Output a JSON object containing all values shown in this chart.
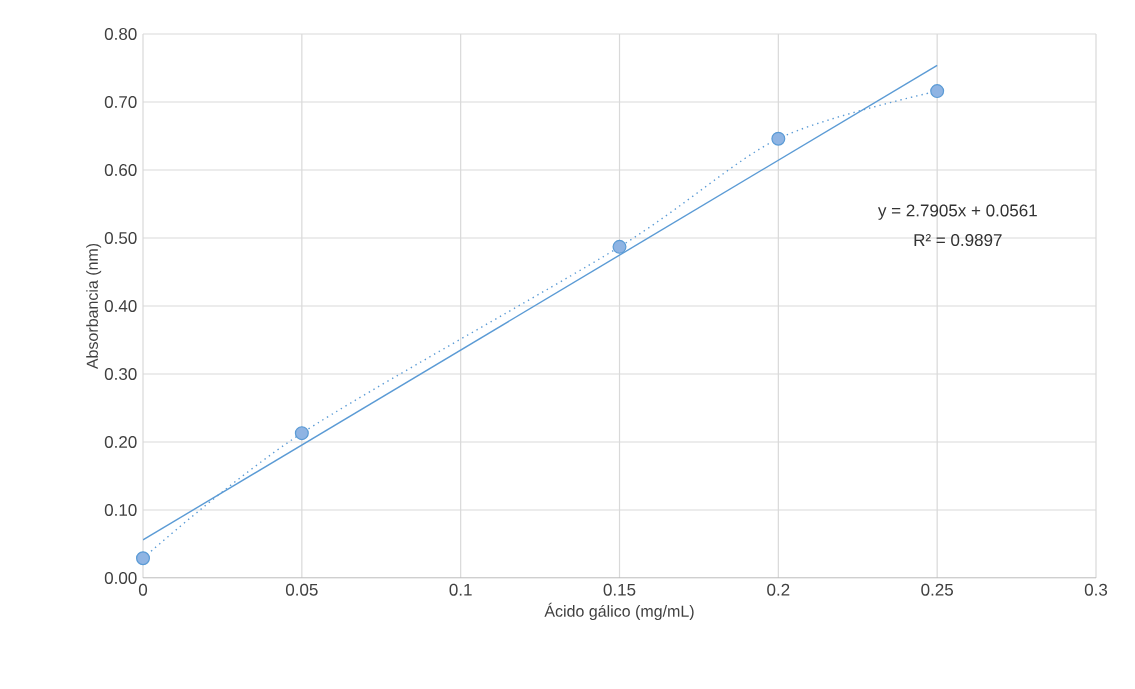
{
  "chart_data": {
    "type": "line",
    "xlabel": "Ácido gálico (mg/mL)",
    "ylabel": "Absorbancia (nm)",
    "x": [
      0,
      0.05,
      0.15,
      0.2,
      0.25
    ],
    "series": [
      {
        "color": "#5b9bd5",
        "marker": "circle",
        "line_style": "dotted",
        "values": [
          0.029,
          0.213,
          0.487,
          0.646,
          0.716
        ]
      },
      {
        "color": "#5b9bd5",
        "marker": "none",
        "line_style": "solid",
        "x": [
          0,
          0.25
        ],
        "values": [
          0.056,
          0.754
        ]
      }
    ],
    "xlim": [
      0,
      0.3
    ],
    "ylim": [
      0,
      0.8
    ],
    "xticks": [
      0,
      0.05,
      0.1,
      0.15,
      0.2,
      0.25,
      0.3
    ],
    "yticks": [
      {
        "value": 0,
        "label": "0.00"
      },
      {
        "value": 0.1,
        "label": "0.10"
      },
      {
        "value": 0.2,
        "label": "0.20"
      },
      {
        "value": 0.3,
        "label": "0.30"
      },
      {
        "value": 0.4,
        "label": "0.40"
      },
      {
        "value": 0.5,
        "label": "0.50"
      },
      {
        "value": 0.6,
        "label": "0.60"
      },
      {
        "value": 0.7,
        "label": "0.70"
      },
      {
        "value": 0.8,
        "label": "0.80"
      }
    ],
    "grid": true,
    "annotations": [
      "y = 2.7905x + 0.0561",
      "R² = 0.9897"
    ]
  }
}
